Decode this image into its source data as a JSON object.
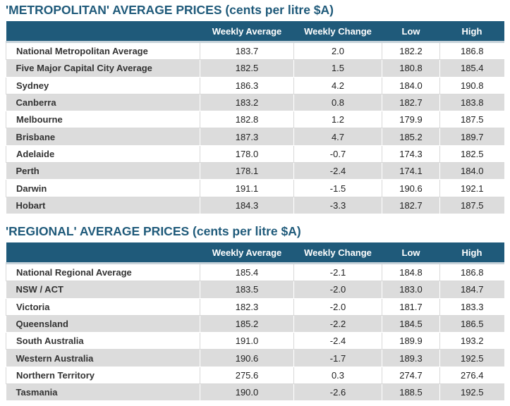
{
  "metropolitan": {
    "title": "'METROPOLITAN' AVERAGE PRICES (cents per litre $A)",
    "headers": [
      "",
      "Weekly Average",
      "Weekly Change",
      "Low",
      "High"
    ],
    "rows": [
      [
        "National Metropolitan Average",
        "183.7",
        "2.0",
        "182.2",
        "186.8"
      ],
      [
        "Five Major Capital City Average",
        "182.5",
        "1.5",
        "180.8",
        "185.4"
      ],
      [
        "Sydney",
        "186.3",
        "4.2",
        "184.0",
        "190.8"
      ],
      [
        "Canberra",
        "183.2",
        "0.8",
        "182.7",
        "183.8"
      ],
      [
        "Melbourne",
        "182.8",
        "1.2",
        "179.9",
        "187.5"
      ],
      [
        "Brisbane",
        "187.3",
        "4.7",
        "185.2",
        "189.7"
      ],
      [
        "Adelaide",
        "178.0",
        "-0.7",
        "174.3",
        "182.5"
      ],
      [
        "Perth",
        "178.1",
        "-2.4",
        "174.1",
        "184.0"
      ],
      [
        "Darwin",
        "191.1",
        "-1.5",
        "190.6",
        "192.1"
      ],
      [
        "Hobart",
        "184.3",
        "-3.3",
        "182.7",
        "187.5"
      ]
    ]
  },
  "regional": {
    "title": "'REGIONAL' AVERAGE PRICES (cents per litre $A)",
    "headers": [
      "",
      "Weekly Average",
      "Weekly Change",
      "Low",
      "High"
    ],
    "rows": [
      [
        "National Regional Average",
        "185.4",
        "-2.1",
        "184.8",
        "186.8"
      ],
      [
        "NSW / ACT",
        "183.5",
        "-2.0",
        "183.0",
        "184.7"
      ],
      [
        "Victoria",
        "182.3",
        "-2.0",
        "181.7",
        "183.3"
      ],
      [
        "Queensland",
        "185.2",
        "-2.2",
        "184.5",
        "186.5"
      ],
      [
        "South Australia",
        "191.0",
        "-2.4",
        "189.9",
        "193.2"
      ],
      [
        "Western Australia",
        "190.6",
        "-1.7",
        "189.3",
        "192.5"
      ],
      [
        "Northern Territory",
        "275.6",
        "0.3",
        "274.7",
        "276.4"
      ],
      [
        "Tasmania",
        "190.0",
        "-2.6",
        "188.5",
        "192.5"
      ]
    ]
  }
}
